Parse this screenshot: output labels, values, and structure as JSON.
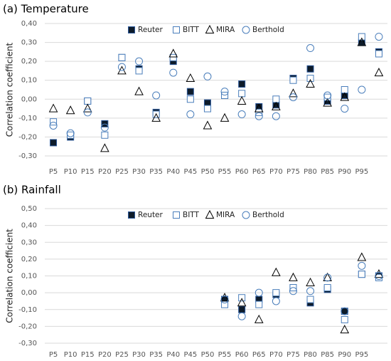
{
  "chart_data": [
    {
      "type": "scatter",
      "title": "(a) Temperature",
      "ylabel": "Correlation coefficient",
      "categories": [
        "P5",
        "P10",
        "P15",
        "P20",
        "P25",
        "P30",
        "P35",
        "P40",
        "P45",
        "P50",
        "P55",
        "P60",
        "P65",
        "P70",
        "P75",
        "P80",
        "P85",
        "P90",
        "P95",
        null
      ],
      "series": [
        {
          "name": "Reuter",
          "marker": "square-filled",
          "color": "#0d1b2a",
          "values": [
            -0.23,
            -0.2,
            -0.01,
            -0.13,
            0.22,
            0.16,
            -0.07,
            0.2,
            0.04,
            -0.02,
            0.02,
            0.08,
            -0.04,
            -0.03,
            0.11,
            0.16,
            -0.01,
            0.02,
            0.3,
            0.25
          ]
        },
        {
          "name": "BITT",
          "marker": "square",
          "color": "#4a7ebb",
          "values": [
            -0.12,
            -0.19,
            -0.01,
            -0.19,
            0.22,
            0.15,
            -0.08,
            0.22,
            0.0,
            -0.05,
            0.02,
            0.03,
            -0.07,
            0.0,
            0.1,
            0.11,
            0.01,
            0.05,
            0.33,
            0.24
          ]
        },
        {
          "name": "MIRA",
          "marker": "triangle",
          "color": "#000000",
          "values": [
            -0.05,
            -0.06,
            -0.05,
            -0.26,
            0.15,
            0.04,
            -0.1,
            0.24,
            0.11,
            -0.14,
            -0.1,
            -0.01,
            -0.05,
            -0.04,
            0.03,
            0.08,
            -0.02,
            0.01,
            0.3,
            0.14
          ]
        },
        {
          "name": "Berthold",
          "marker": "circle",
          "color": "#4a7ebb",
          "values": [
            -0.14,
            -0.18,
            -0.07,
            -0.15,
            0.17,
            0.2,
            0.02,
            0.14,
            -0.08,
            0.12,
            0.04,
            -0.08,
            -0.09,
            -0.09,
            0.01,
            0.27,
            0.02,
            -0.05,
            0.05,
            0.33
          ]
        }
      ],
      "ylim": [
        -0.3,
        0.4
      ],
      "yticks": [
        {
          "value": -0.3,
          "label": "-0,30"
        },
        {
          "value": -0.2,
          "label": "-0,20"
        },
        {
          "value": -0.1,
          "label": "-0,10"
        },
        {
          "value": 0,
          "label": "0,00"
        },
        {
          "value": 0.1,
          "label": "0,10"
        },
        {
          "value": 0.2,
          "label": "0,20"
        },
        {
          "value": 0.3,
          "label": "0,30"
        },
        {
          "value": 0.4,
          "label": "0,40"
        }
      ],
      "grid": true
    },
    {
      "type": "scatter",
      "title": "(b) Rainfall",
      "ylabel": "Correlation coefficient",
      "categories": [
        "P5",
        "P10",
        "P15",
        "P20",
        "P25",
        "P30",
        "P35",
        "P40",
        "P45",
        "P50",
        "P55",
        "P60",
        "P65",
        "P70",
        "P75",
        "P80",
        "P85",
        "P90",
        "P95",
        null
      ],
      "series": [
        {
          "name": "Reuter",
          "marker": "square-filled",
          "color": "#0d1b2a",
          "values": [
            null,
            null,
            null,
            null,
            null,
            null,
            null,
            null,
            null,
            null,
            -0.04,
            -0.1,
            -0.04,
            -0.01,
            0.03,
            -0.06,
            0.02,
            -0.11,
            0.11,
            0.1
          ]
        },
        {
          "name": "BITT",
          "marker": "square",
          "color": "#4a7ebb",
          "values": [
            null,
            null,
            null,
            null,
            null,
            null,
            null,
            null,
            null,
            null,
            -0.07,
            -0.03,
            -0.07,
            0.0,
            0.03,
            -0.04,
            0.03,
            -0.16,
            0.11,
            0.09
          ]
        },
        {
          "name": "MIRA",
          "marker": "triangle",
          "color": "#000000",
          "values": [
            null,
            null,
            null,
            null,
            null,
            null,
            null,
            null,
            null,
            null,
            -0.03,
            -0.06,
            -0.16,
            0.12,
            0.09,
            0.06,
            0.09,
            -0.22,
            0.21,
            0.11
          ]
        },
        {
          "name": "Berthold",
          "marker": "circle",
          "color": "#4a7ebb",
          "values": [
            null,
            null,
            null,
            null,
            null,
            null,
            null,
            null,
            null,
            null,
            -0.04,
            -0.14,
            0.0,
            -0.05,
            0.01,
            0.01,
            0.09,
            -0.11,
            0.16,
            0.1
          ]
        }
      ],
      "ylim": [
        -0.3,
        0.5
      ],
      "yticks": [
        {
          "value": -0.3,
          "label": "-0,30"
        },
        {
          "value": -0.2,
          "label": "-0,20"
        },
        {
          "value": -0.1,
          "label": "-0,10"
        },
        {
          "value": 0,
          "label": "0,00"
        },
        {
          "value": 0.1,
          "label": "0,10"
        },
        {
          "value": 0.2,
          "label": "0,20"
        },
        {
          "value": 0.3,
          "label": "0,30"
        },
        {
          "value": 0.4,
          "label": "0,40"
        },
        {
          "value": 0.5,
          "label": "0,50"
        }
      ],
      "grid": true
    }
  ]
}
